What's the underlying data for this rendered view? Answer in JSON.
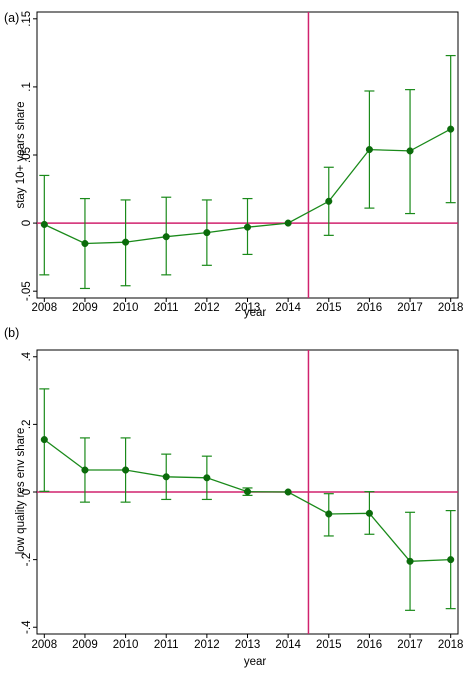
{
  "colors": {
    "series": "#1a8a1a",
    "marker": "#0b6b0b",
    "reference_lines": "#d0226e",
    "axis": "#000000",
    "background": "#ffffff"
  },
  "chart_data": [
    {
      "type": "line",
      "panel_label": "(a)",
      "xlabel": "year",
      "ylabel": "stay 10+ years share",
      "x": [
        2008,
        2009,
        2010,
        2011,
        2012,
        2013,
        2014,
        2015,
        2016,
        2017,
        2018
      ],
      "x_tick_labels": [
        "2008",
        "2009",
        "2010",
        "2011",
        "2012",
        "2013",
        "2014",
        "2015",
        "2016",
        "2017",
        "2018"
      ],
      "ylim": [
        -0.055,
        0.155
      ],
      "y_ticks": [
        -0.05,
        0,
        0.05,
        0.1,
        0.15
      ],
      "y_tick_labels": [
        "-.05",
        "0",
        ".05",
        ".1",
        ".15"
      ],
      "series": [
        {
          "values": [
            -0.001,
            -0.015,
            -0.014,
            -0.01,
            -0.007,
            -0.003,
            0.0,
            0.016,
            0.054,
            0.053,
            0.069
          ],
          "ci_lower": [
            -0.038,
            -0.048,
            -0.046,
            -0.038,
            -0.031,
            -0.023,
            0.0,
            -0.009,
            0.011,
            0.007,
            0.015
          ],
          "ci_upper": [
            0.035,
            0.018,
            0.017,
            0.019,
            0.017,
            0.018,
            0.0,
            0.041,
            0.097,
            0.098,
            0.123
          ]
        }
      ],
      "vertical_line_x": 2014.5,
      "horizontal_line_y": 0,
      "legend": "none",
      "grid": false
    },
    {
      "type": "line",
      "panel_label": "(b)",
      "xlabel": "year",
      "ylabel": "low quality res env share",
      "x": [
        2008,
        2009,
        2010,
        2011,
        2012,
        2013,
        2014,
        2015,
        2016,
        2017,
        2018
      ],
      "x_tick_labels": [
        "2008",
        "2009",
        "2010",
        "2011",
        "2012",
        "2013",
        "2014",
        "2015",
        "2016",
        "2017",
        "2018"
      ],
      "ylim": [
        -0.42,
        0.42
      ],
      "y_ticks": [
        -0.4,
        -0.2,
        0,
        0.2,
        0.4
      ],
      "y_tick_labels": [
        "-.4",
        "-.2",
        "0",
        ".2",
        ".4"
      ],
      "series": [
        {
          "values": [
            0.155,
            0.065,
            0.065,
            0.045,
            0.042,
            0.001,
            0.0,
            -0.065,
            -0.063,
            -0.205,
            -0.2
          ],
          "ci_lower": [
            0.002,
            -0.03,
            -0.03,
            -0.022,
            -0.022,
            -0.01,
            0.0,
            -0.13,
            -0.125,
            -0.35,
            -0.345
          ],
          "ci_upper": [
            0.305,
            0.16,
            0.16,
            0.112,
            0.106,
            0.012,
            0.0,
            -0.005,
            0.001,
            -0.06,
            -0.055
          ]
        }
      ],
      "vertical_line_x": 2014.5,
      "horizontal_line_y": 0,
      "legend": "none",
      "grid": false
    }
  ]
}
